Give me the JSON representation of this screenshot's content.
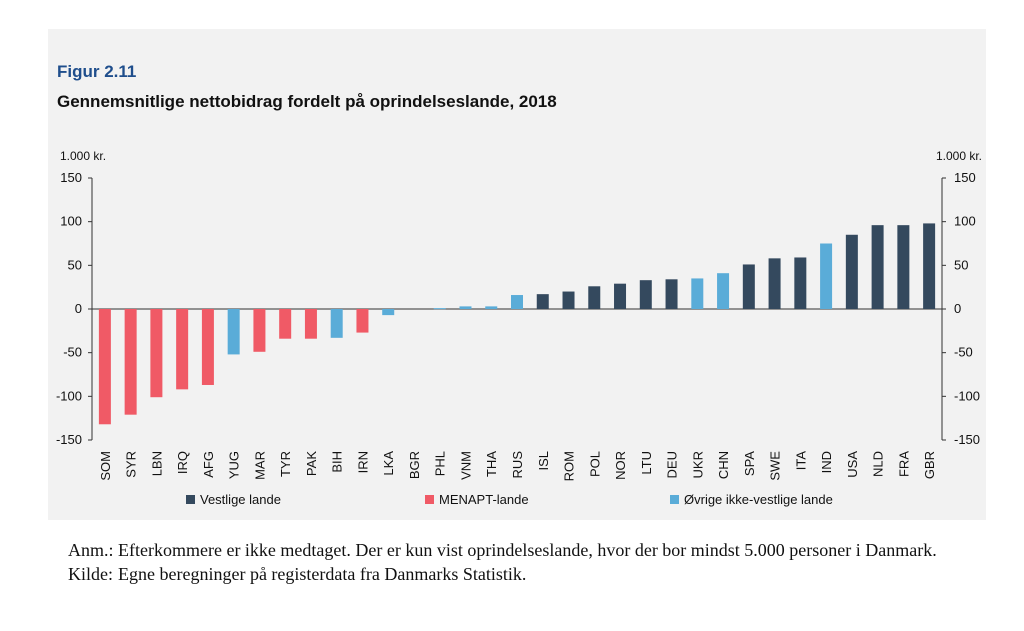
{
  "figure": {
    "label": "Figur 2.11",
    "title": "Gennemsnitlige nettobidrag fordelt på oprindelseslande, 2018"
  },
  "chart_data": {
    "type": "bar",
    "unit_left": "1.000 kr.",
    "unit_right": "1.000 kr.",
    "ylim": [
      -150,
      150
    ],
    "yticks": [
      150,
      100,
      50,
      0,
      -50,
      -100,
      -150
    ],
    "categories": [
      "SOM",
      "SYR",
      "LBN",
      "IRQ",
      "AFG",
      "YUG",
      "MAR",
      "TYR",
      "PAK",
      "BIH",
      "IRN",
      "LKA",
      "BGR",
      "PHL",
      "VNM",
      "THA",
      "RUS",
      "ISL",
      "ROM",
      "POL",
      "NOR",
      "LTU",
      "DEU",
      "UKR",
      "CHN",
      "SPA",
      "SWE",
      "ITA",
      "IND",
      "USA",
      "NLD",
      "FRA",
      "GBR"
    ],
    "values": [
      -132,
      -121,
      -101,
      -92,
      -87,
      -52,
      -49,
      -34,
      -34,
      -33,
      -27,
      -7,
      0,
      1,
      3,
      3,
      16,
      17,
      20,
      26,
      29,
      33,
      34,
      35,
      41,
      51,
      58,
      59,
      75,
      85,
      96,
      96,
      98
    ],
    "groups": [
      "menapt",
      "menapt",
      "menapt",
      "menapt",
      "menapt",
      "other",
      "menapt",
      "menapt",
      "menapt",
      "other",
      "menapt",
      "other",
      "other",
      "other",
      "other",
      "other",
      "other",
      "western",
      "western",
      "western",
      "western",
      "western",
      "western",
      "other",
      "other",
      "western",
      "western",
      "western",
      "other",
      "western",
      "western",
      "western",
      "western"
    ],
    "colors": {
      "western": "#34495e",
      "menapt": "#f05a66",
      "other": "#5aacd8"
    },
    "legend": [
      {
        "key": "western",
        "label": "Vestlige lande"
      },
      {
        "key": "menapt",
        "label": "MENAPT-lande"
      },
      {
        "key": "other",
        "label": "Øvrige ikke-vestlige lande"
      }
    ],
    "legend_position": "bottom",
    "grid": false
  },
  "notes": [
    {
      "key": "Anm.:",
      "text": "Efterkommere er ikke medtaget. Der er kun vist oprindelseslande, hvor der bor mindst 5.000 personer i Danmark."
    },
    {
      "key": "Kilde:",
      "text": "Egne beregninger på registerdata fra Danmarks Statistik."
    }
  ]
}
